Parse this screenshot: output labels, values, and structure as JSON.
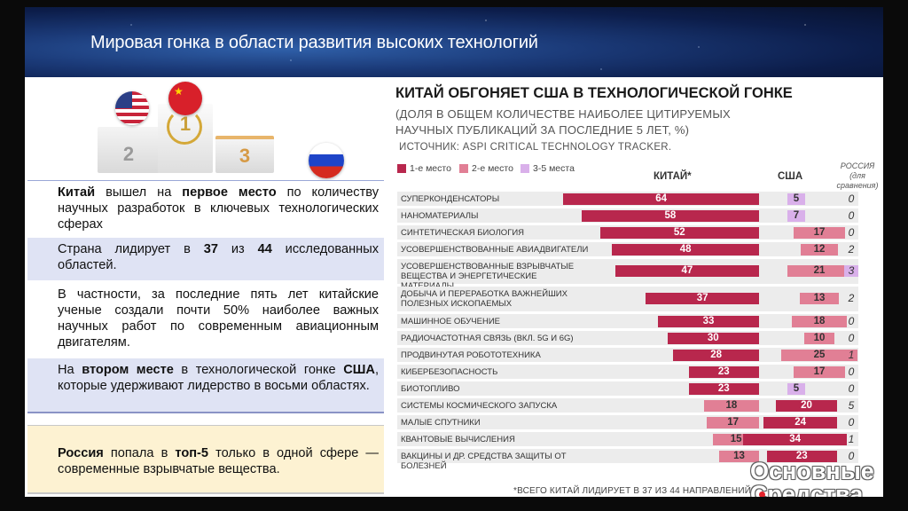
{
  "slide_title": "Мировая гонка в области развития высоких технологий",
  "podium": {
    "place2": "2",
    "place1": "1",
    "place3": "3"
  },
  "boxes": {
    "b1": {
      "p1": "Китай",
      "p2": " вышел на ",
      "p3": "первое место",
      "p4": " по количеству научных разработок в ключевых технологических сферах"
    },
    "b2": {
      "p1": "Страна лидирует в ",
      "p2": "37",
      "p3": " из ",
      "p4": "44",
      "p5": " исследованных областей."
    },
    "b3": {
      "text": "В частности, за последние пять лет китайские ученые создали почти 50% наиболее важных научных работ по современным авиационным двигателям."
    },
    "b4": {
      "p1": "На ",
      "p2": "втором месте",
      "p3": " в технологической гонке ",
      "p4": "США",
      "p5": ", которые удерживают лидерство в восьми областях."
    },
    "b5": {
      "p1": "Россия",
      "p2": " попала в ",
      "p3": "топ-5",
      "p4": " только в одной сфере — современные взрывчатые вещества."
    }
  },
  "chart_data": {
    "type": "bar",
    "title": "КИТАЙ ОБГОНЯЕТ США В ТЕХНОЛОГИЧЕСКОЙ ГОНКЕ",
    "subtitle": "(ДОЛЯ В ОБЩЕМ КОЛИЧЕСТВЕ НАИБОЛЕЕ ЦИТИРУЕМЫХ НАУЧНЫХ ПУБЛИКАЦИЙ ЗА ПОСЛЕДНИЕ 5 ЛЕТ, %)",
    "source": "ИСТОЧНИК: ASPI CRITICAL TECHNOLOGY TRACKER.",
    "legend": [
      {
        "label": "1-е место",
        "color": "#b8274d"
      },
      {
        "label": "2-е место",
        "color": "#e17f95"
      },
      {
        "label": "3-5 места",
        "color": "#d9b0ea"
      }
    ],
    "columns": {
      "china": "КИТАЙ*",
      "usa": "США",
      "russia": "РОССИЯ",
      "russia_note": "(для сравнения)"
    },
    "footnote": "*ВСЕГО КИТАЙ ЛИДИРУЕТ В 37 ИЗ 44 НАПРАВЛЕНИЙ",
    "categories": [
      "СУПЕРКОНДЕНСАТОРЫ",
      "НАНОМАТЕРИАЛЫ",
      "СИНТЕТИЧЕСКАЯ БИОЛОГИЯ",
      "УСОВЕРШЕНСТВОВАННЫЕ АВИАДВИГАТЕЛИ",
      "УСОВЕРШЕНСТВОВАННЫЕ ВЗРЫВЧАТЫЕ ВЕЩЕСТВА И ЭНЕРГЕТИЧЕСКИЕ МАТЕРИАЛЫ",
      "ДОБЫЧА И ПЕРЕРАБОТКА ВАЖНЕЙШИХ ПОЛЕЗНЫХ ИСКОПАЕМЫХ",
      "МАШИННОЕ ОБУЧЕНИЕ",
      "РАДИОЧАСТОТНАЯ СВЯЗЬ (ВКЛ. 5G И 6G)",
      "ПРОДВИНУТАЯ РОБОТОТЕХНИКА",
      "КИБЕРБЕЗОПАСНОСТЬ",
      "БИОТОПЛИВО",
      "СИСТЕМЫ КОСМИЧЕСКОГО ЗАПУСКА",
      "МАЛЫЕ СПУТНИКИ",
      "КВАНТОВЫЕ ВЫЧИСЛЕНИЯ",
      "ВАКЦИНЫ И ДР. СРЕДСТВА ЗАЩИТЫ ОТ БОЛЕЗНЕЙ"
    ],
    "series": [
      {
        "name": "КИТАЙ*",
        "values": [
          64,
          58,
          52,
          48,
          47,
          37,
          33,
          30,
          28,
          23,
          23,
          18,
          17,
          15,
          13
        ],
        "rank": [
          1,
          1,
          1,
          1,
          1,
          1,
          1,
          1,
          1,
          1,
          1,
          2,
          2,
          2,
          2
        ]
      },
      {
        "name": "США",
        "values": [
          5,
          7,
          17,
          12,
          21,
          13,
          18,
          10,
          25,
          17,
          5,
          20,
          24,
          34,
          23
        ],
        "rank": [
          3,
          3,
          2,
          2,
          2,
          2,
          2,
          2,
          2,
          2,
          3,
          1,
          1,
          1,
          1
        ]
      },
      {
        "name": "РОССИЯ",
        "values": [
          0,
          0,
          0,
          2,
          3,
          2,
          0,
          0,
          1,
          0,
          0,
          5,
          0,
          1,
          0
        ],
        "rank": [
          0,
          0,
          0,
          0,
          3,
          0,
          0,
          0,
          0,
          0,
          0,
          0,
          0,
          0,
          0
        ]
      }
    ],
    "xlim": [
      0,
      70
    ]
  },
  "watermark": {
    "line1": "Основные",
    "line2": "Средства"
  }
}
